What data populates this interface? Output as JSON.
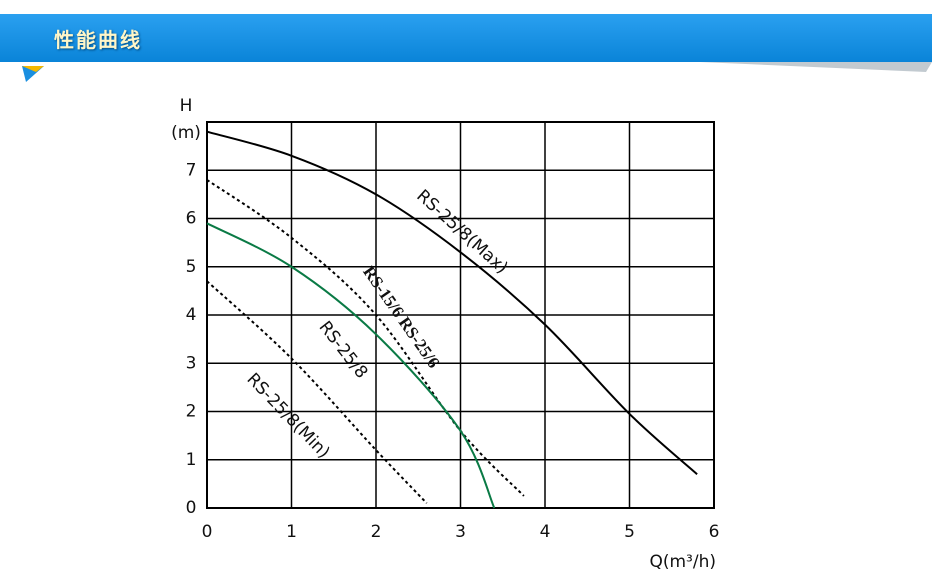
{
  "header": {
    "title": "性能曲线"
  },
  "chart_data": {
    "type": "line",
    "ylabel_lines": [
      "H",
      "(m)"
    ],
    "xlabel": "Q(m³/h)",
    "xlim": [
      0,
      6
    ],
    "xticks": [
      0,
      1,
      2,
      3,
      4,
      5,
      6
    ],
    "ylim": [
      0,
      8
    ],
    "yticks": [
      0,
      1,
      2,
      3,
      4,
      5,
      6,
      7
    ],
    "grid": true,
    "series": [
      {
        "name": "RS-25/8(Max)",
        "color": "#000000",
        "dashed": false,
        "x": [
          0,
          1,
          2,
          3,
          4,
          5,
          5.8
        ],
        "values": [
          7.8,
          7.3,
          6.5,
          5.3,
          3.8,
          1.95,
          0.7
        ]
      },
      {
        "name": "RS-25/8",
        "color": "#000000",
        "dashed": true,
        "x": [
          0,
          1,
          2,
          3,
          3.75
        ],
        "values": [
          6.8,
          5.6,
          4.0,
          1.6,
          0.25
        ]
      },
      {
        "name": "RS-15/6 RS-25/6",
        "color": "#0a7a45",
        "dashed": false,
        "x": [
          0,
          1,
          2,
          3,
          3.4
        ],
        "values": [
          5.9,
          5.0,
          3.6,
          1.6,
          0
        ]
      },
      {
        "name": "RS-25/8(Min)",
        "color": "#000000",
        "dashed": true,
        "x": [
          0,
          1,
          2,
          2.6
        ],
        "values": [
          4.7,
          3.1,
          1.2,
          0.1
        ]
      }
    ]
  }
}
